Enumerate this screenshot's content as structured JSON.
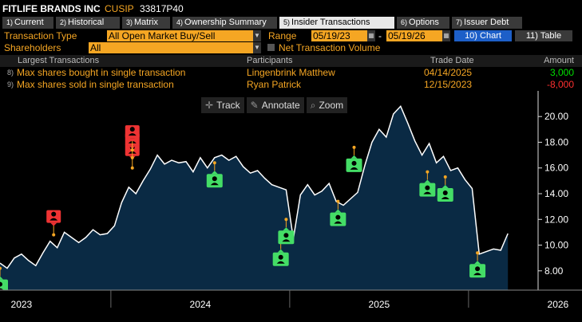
{
  "header": {
    "company": "FITLIFE BRANDS INC",
    "cusip_label": "CUSIP",
    "cusip": "33817P40"
  },
  "tabs": [
    {
      "num": "1)",
      "label": "Current"
    },
    {
      "num": "2)",
      "label": "Historical"
    },
    {
      "num": "3)",
      "label": "Matrix"
    },
    {
      "num": "4)",
      "label": "Ownership Summary"
    },
    {
      "num": "5)",
      "label": "Insider Transactions"
    },
    {
      "num": "6)",
      "label": "Options"
    },
    {
      "num": "7)",
      "label": "Issuer Debt"
    }
  ],
  "controls": {
    "transaction_type_label": "Transaction Type",
    "transaction_type_value": "All Open Market Buy/Sell",
    "range_label": "Range",
    "range_start": "05/19/23",
    "range_sep": "-",
    "range_end": "05/19/26",
    "chart_btn": "10) Chart",
    "table_btn": "11) Table",
    "shareholders_label": "Shareholders",
    "shareholders_value": "All",
    "net_volume_label": "Net Transaction Volume"
  },
  "table": {
    "headers": {
      "largest": "Largest Transactions",
      "participants": "Participants",
      "trade_date": "Trade Date",
      "amount": "Amount"
    },
    "rows": [
      {
        "num": "8)",
        "desc": "Max shares bought in single transaction",
        "participant": "Lingenbrink Matthew",
        "date": "04/14/2025",
        "amount": "3,000",
        "amount_color": "#00e000"
      },
      {
        "num": "9)",
        "desc": "Max shares sold in single transaction",
        "participant": "Ryan Patrick",
        "date": "12/15/2023",
        "amount": "-8,000",
        "amount_color": "#ff3030"
      }
    ]
  },
  "toolbar": {
    "track": "Track",
    "annotate": "Annotate",
    "zoom": "Zoom"
  },
  "colors": {
    "accent": "#f5a623",
    "buy": "#44dd66",
    "sell": "#ee3333",
    "area": "#0a2a44",
    "line": "#ffffff"
  },
  "chart_data": {
    "type": "area",
    "title": "",
    "xlabel": "",
    "ylabel": "",
    "ylim": [
      6.5,
      21.5
    ],
    "y_ticks": [
      8.0,
      10.0,
      12.0,
      14.0,
      16.0,
      18.0,
      20.0
    ],
    "y_tick_labels": [
      "8.00",
      "10.00",
      "12.00",
      "14.00",
      "16.00",
      "18.00",
      "20.00"
    ],
    "x_range": [
      2023.38,
      2026.38
    ],
    "x_tick_years": [
      "2023",
      "2024",
      "2025",
      "2026"
    ],
    "x_tick_pos": [
      2023.5,
      2024.5,
      2025.5,
      2026.5
    ],
    "x_dividers": [
      2024.0,
      2025.0,
      2026.0
    ],
    "grid": false,
    "series": [
      {
        "x": [
          2023.38,
          2023.42,
          2023.46,
          2023.5,
          2023.54,
          2023.58,
          2023.62,
          2023.66,
          2023.7,
          2023.74,
          2023.78,
          2023.82,
          2023.86,
          2023.9,
          2023.94,
          2023.98,
          2024.02,
          2024.06,
          2024.1,
          2024.14,
          2024.18,
          2024.22,
          2024.26,
          2024.3,
          2024.34,
          2024.38,
          2024.42,
          2024.46,
          2024.5,
          2024.54,
          2024.58,
          2024.62,
          2024.66,
          2024.7,
          2024.74,
          2024.78,
          2024.82,
          2024.86,
          2024.9,
          2024.94,
          2024.98,
          2025.02,
          2025.06,
          2025.1,
          2025.14,
          2025.18,
          2025.22,
          2025.26,
          2025.3,
          2025.34,
          2025.38,
          2025.42,
          2025.46,
          2025.5,
          2025.54,
          2025.58,
          2025.62,
          2025.66,
          2025.7,
          2025.74,
          2025.78,
          2025.82,
          2025.86,
          2025.9,
          2025.94,
          2025.98,
          2026.02,
          2026.06,
          2026.1,
          2026.14,
          2026.18,
          2026.22
        ],
        "y": [
          8.6,
          8.2,
          9.0,
          9.3,
          8.8,
          8.4,
          9.4,
          10.3,
          9.8,
          11.0,
          10.6,
          10.2,
          10.6,
          11.2,
          10.8,
          10.9,
          11.5,
          13.3,
          14.5,
          14.0,
          15.0,
          15.9,
          17.0,
          16.3,
          16.6,
          16.4,
          16.5,
          15.7,
          16.8,
          16.0,
          16.8,
          17.0,
          16.6,
          16.9,
          16.1,
          15.6,
          15.8,
          15.2,
          14.7,
          14.5,
          14.3,
          10.5,
          13.9,
          14.7,
          13.9,
          14.2,
          14.8,
          13.4,
          13.1,
          13.6,
          14.1,
          16.2,
          18.0,
          19.0,
          18.4,
          20.2,
          20.8,
          19.5,
          18.1,
          17.0,
          17.9,
          16.4,
          16.9,
          15.8,
          16.0,
          15.1,
          14.4,
          9.3,
          9.5,
          9.7,
          9.6,
          10.9
        ]
      }
    ],
    "sell_markers": [
      {
        "x": 2023.68,
        "y": 10.8
      },
      {
        "x": 2024.12,
        "y": 16.0
      },
      {
        "x": 2024.12,
        "y": 16.8
      },
      {
        "x": 2024.12,
        "y": 17.4
      }
    ],
    "buy_markers": [
      {
        "x": 2023.38,
        "y": 8.2
      },
      {
        "x": 2024.58,
        "y": 16.4
      },
      {
        "x": 2024.95,
        "y": 10.3
      },
      {
        "x": 2024.98,
        "y": 12.0
      },
      {
        "x": 2025.27,
        "y": 13.4
      },
      {
        "x": 2025.36,
        "y": 17.6
      },
      {
        "x": 2025.77,
        "y": 15.7
      },
      {
        "x": 2025.87,
        "y": 15.3
      },
      {
        "x": 2026.05,
        "y": 9.4
      }
    ]
  }
}
